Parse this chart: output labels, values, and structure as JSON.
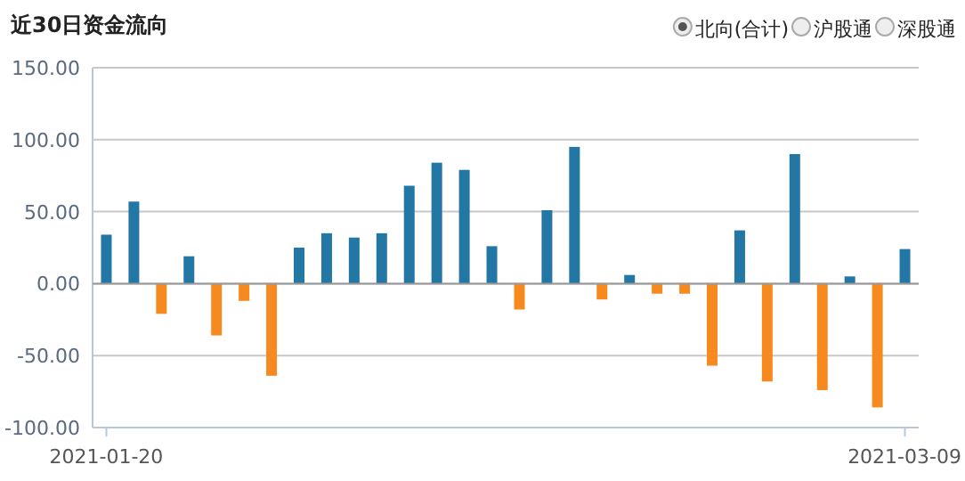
{
  "chart_data": {
    "type": "bar",
    "title": "近30日资金流向",
    "annotations": [
      "北向(合计)",
      "沪股通",
      "深股通"
    ],
    "categories": [
      "2021-01-20",
      null,
      null,
      null,
      null,
      null,
      null,
      null,
      null,
      null,
      null,
      null,
      null,
      null,
      null,
      null,
      null,
      null,
      null,
      null,
      null,
      null,
      null,
      null,
      null,
      null,
      null,
      null,
      null,
      "2021-03-09"
    ],
    "values": [
      34,
      57,
      -21,
      19,
      -36,
      -12,
      -64,
      25,
      35,
      32,
      35,
      68,
      84,
      79,
      26,
      -18,
      51,
      95,
      -11,
      6,
      -7,
      -7,
      -57,
      37,
      -68,
      90,
      -74,
      5,
      -86,
      24
    ],
    "colors": [
      "#2377a4",
      "#2377a4",
      "#f68a1e",
      "#2377a4",
      "#f68a1e",
      "#f68a1e",
      "#f68a1e",
      "#2377a4",
      "#2377a4",
      "#2377a4",
      "#2377a4",
      "#2377a4",
      "#2377a4",
      "#2377a4",
      "#2377a4",
      "#f68a1e",
      "#2377a4",
      "#2377a4",
      "#f68a1e",
      "#2377a4",
      "#f68a1e",
      "#f68a1e",
      "#f68a1e",
      "#2377a4",
      "#f68a1e",
      "#2377a4",
      "#f68a1e",
      "#2377a4",
      "#f68a1e",
      "#2377a4"
    ],
    "ylim": [
      -100,
      150
    ],
    "yticks": [
      {
        "value": -100,
        "label": "-100.00"
      },
      {
        "value": -50,
        "label": "-50.00"
      },
      {
        "value": 0,
        "label": "0.00"
      },
      {
        "value": 50,
        "label": "50.00"
      },
      {
        "value": 100,
        "label": "100.00"
      },
      {
        "value": 150,
        "label": "150.00"
      }
    ],
    "grid": "y"
  }
}
